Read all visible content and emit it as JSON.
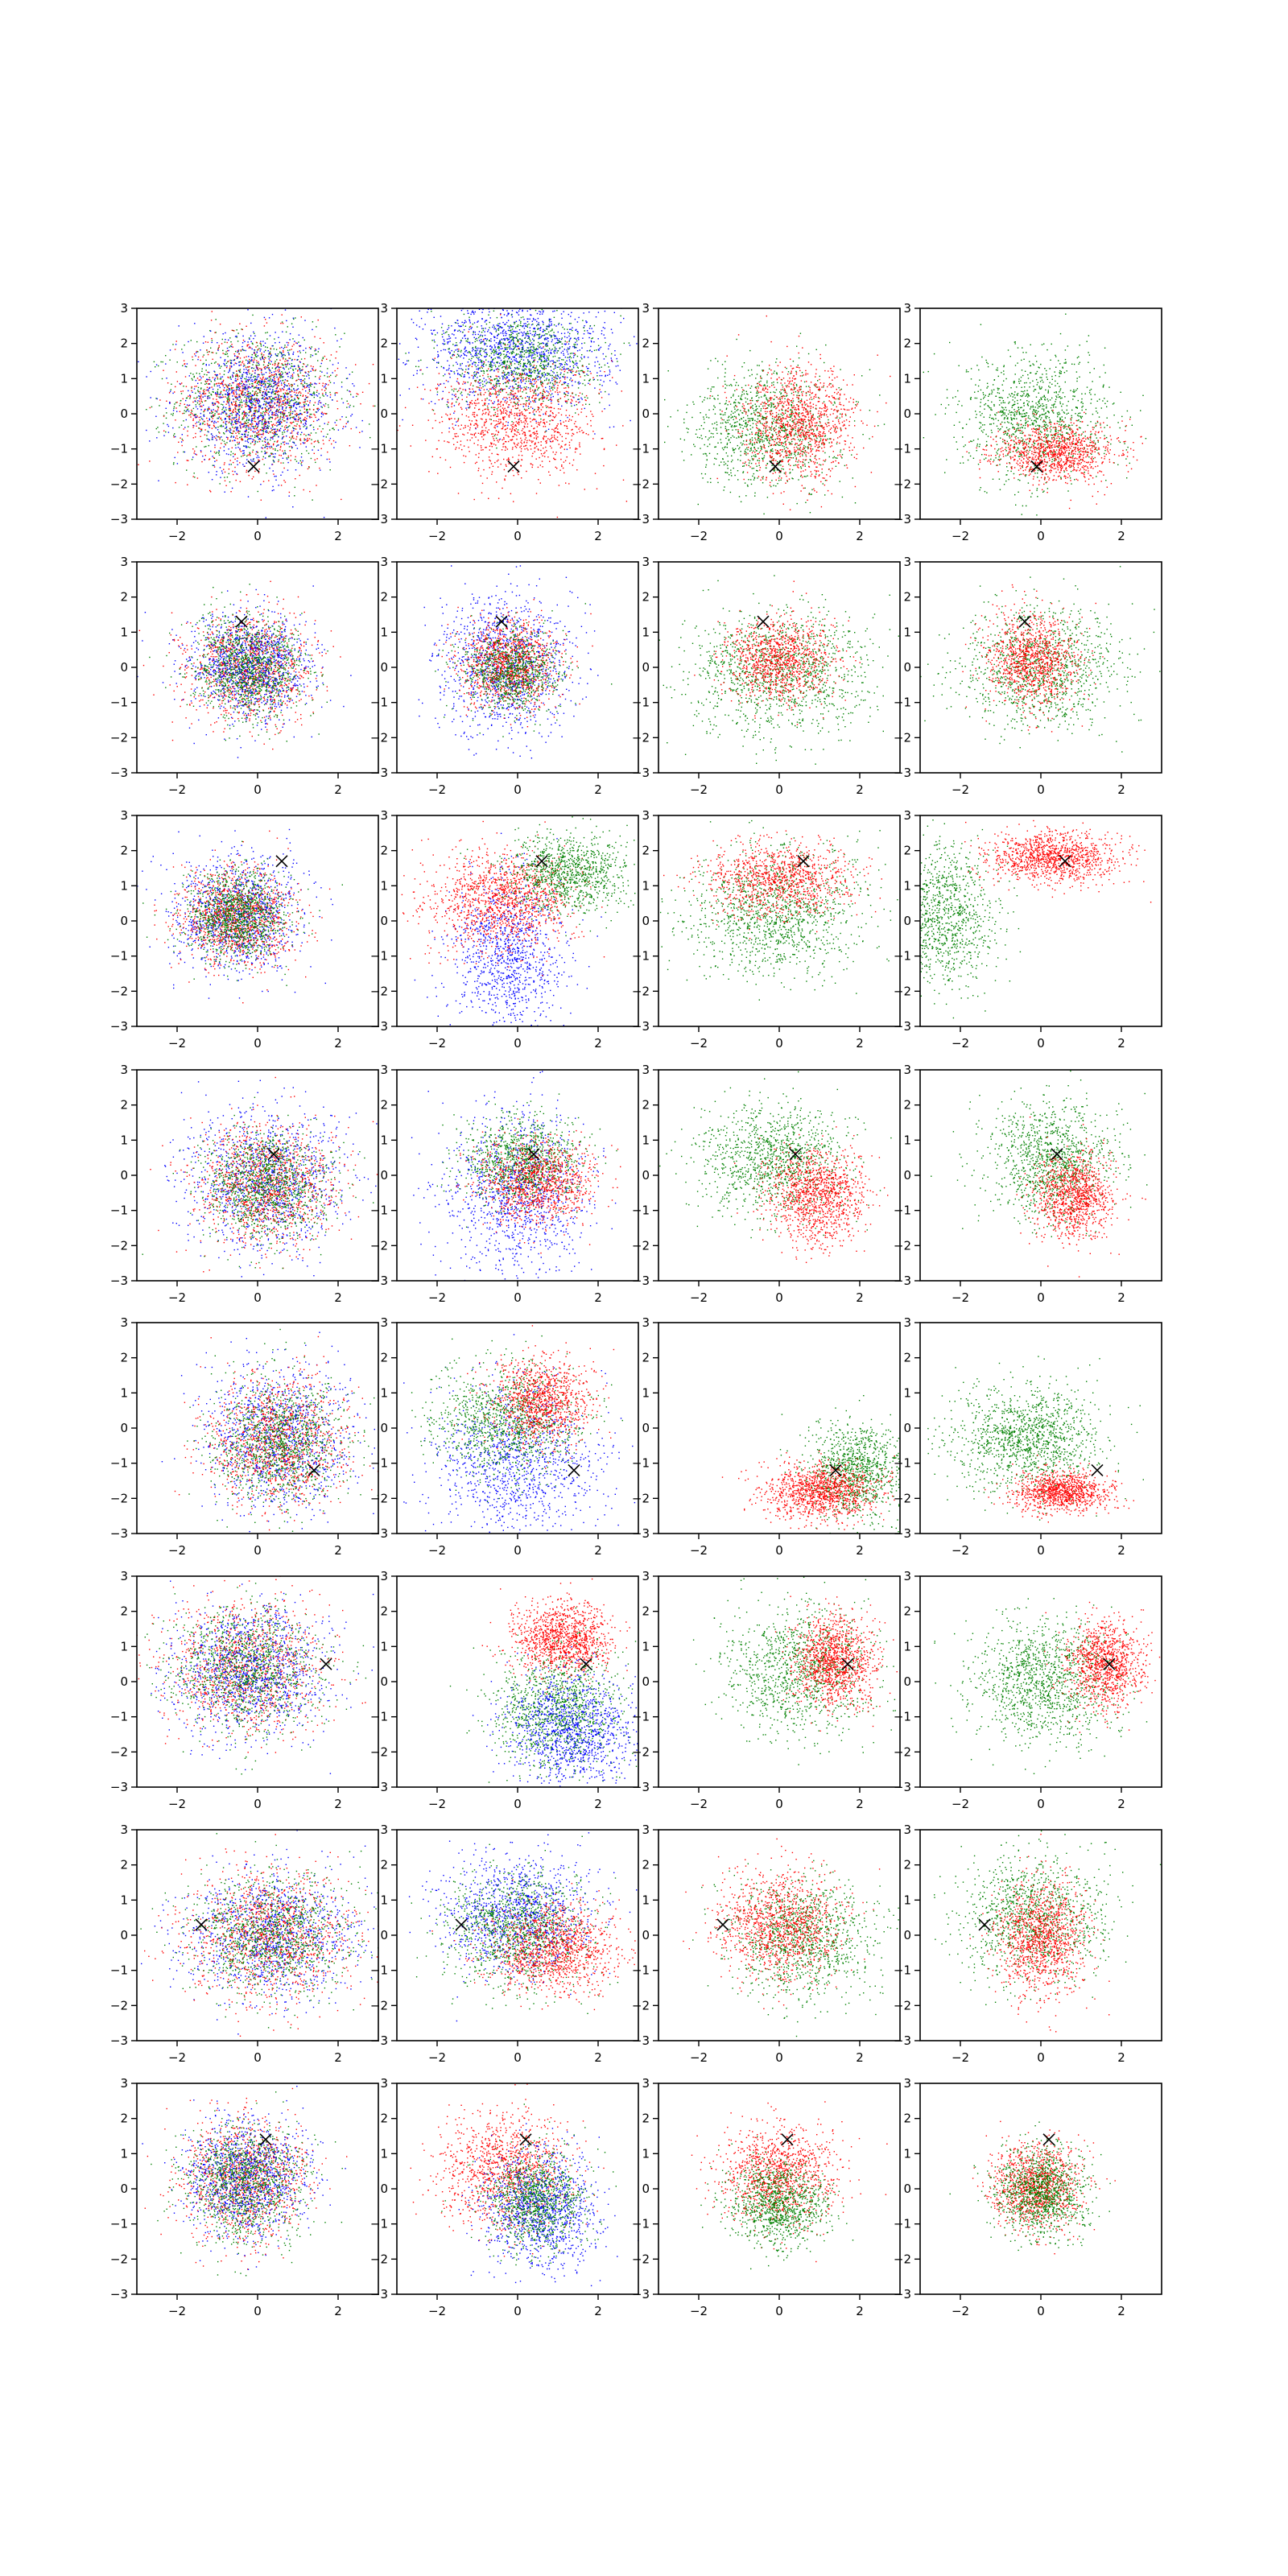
{
  "figure": {
    "rows": 8,
    "cols": 4,
    "colors": {
      "red": "#ff0000",
      "green": "#008000",
      "blue": "#0000ff",
      "marker": "#000000",
      "axes": "#000000"
    }
  },
  "chart_data": {
    "type": "scatter",
    "xlim": [
      -3,
      3
    ],
    "ylim": [
      -3,
      3
    ],
    "xticks": [
      -2,
      0,
      2
    ],
    "yticks": [
      -3,
      -2,
      -1,
      0,
      1,
      2,
      3
    ],
    "xtick_labels": [
      "−2",
      "0",
      "2"
    ],
    "ytick_labels": [
      "−3",
      "−2",
      "−1",
      "0",
      "1",
      "2",
      "3"
    ],
    "grid": false,
    "legend": "none",
    "marker_symbol": "x",
    "rows": [
      {
        "marker": [
          -0.1,
          -1.5
        ],
        "panels": [
          {
            "clusters": [
              {
                "color": "green",
                "cx": 0.0,
                "cy": 0.4,
                "sx": 1.0,
                "sy": 0.95,
                "weight": 1
              },
              {
                "color": "red",
                "cx": 0.0,
                "cy": 0.3,
                "sx": 1.0,
                "sy": 0.95,
                "weight": 1
              },
              {
                "color": "blue",
                "cx": 0.0,
                "cy": 0.3,
                "sx": 1.0,
                "sy": 0.95,
                "weight": 1
              }
            ]
          },
          {
            "clusters": [
              {
                "color": "blue",
                "cx": 0.0,
                "cy": 1.8,
                "sx": 1.2,
                "sy": 0.8,
                "weight": 1.2
              },
              {
                "color": "green",
                "cx": 0.1,
                "cy": 1.5,
                "sx": 0.9,
                "sy": 0.7,
                "weight": 0.8
              },
              {
                "color": "red",
                "cx": 0.0,
                "cy": -0.2,
                "sx": 1.0,
                "sy": 0.8,
                "weight": 1
              }
            ]
          },
          {
            "clusters": [
              {
                "color": "green",
                "cx": -0.3,
                "cy": -0.4,
                "sx": 0.9,
                "sy": 0.85,
                "weight": 1
              },
              {
                "color": "red",
                "cx": 0.5,
                "cy": -0.3,
                "sx": 0.7,
                "sy": 0.8,
                "weight": 1
              }
            ]
          },
          {
            "clusters": [
              {
                "color": "green",
                "cx": -0.1,
                "cy": -0.1,
                "sx": 0.9,
                "sy": 0.9,
                "weight": 1
              },
              {
                "color": "red",
                "cx": 0.4,
                "cy": -1.1,
                "sx": 0.75,
                "sy": 0.4,
                "weight": 0.9
              }
            ]
          }
        ]
      },
      {
        "marker": [
          -0.4,
          1.3
        ],
        "panels": [
          {
            "clusters": [
              {
                "color": "red",
                "cx": -0.2,
                "cy": 0.0,
                "sx": 0.75,
                "sy": 0.75,
                "weight": 1
              },
              {
                "color": "blue",
                "cx": -0.2,
                "cy": 0.0,
                "sx": 0.75,
                "sy": 0.75,
                "weight": 1
              },
              {
                "color": "green",
                "cx": -0.2,
                "cy": 0.0,
                "sx": 0.7,
                "sy": 0.7,
                "weight": 1
              }
            ]
          },
          {
            "clusters": [
              {
                "color": "blue",
                "cx": -0.3,
                "cy": 0.1,
                "sx": 0.8,
                "sy": 1.0,
                "weight": 1
              },
              {
                "color": "red",
                "cx": -0.2,
                "cy": 0.1,
                "sx": 0.6,
                "sy": 0.6,
                "weight": 1
              },
              {
                "color": "green",
                "cx": -0.2,
                "cy": -0.1,
                "sx": 0.6,
                "sy": 0.6,
                "weight": 0.8
              }
            ]
          },
          {
            "clusters": [
              {
                "color": "green",
                "cx": 0.0,
                "cy": -0.2,
                "sx": 1.1,
                "sy": 0.9,
                "weight": 1.1
              },
              {
                "color": "red",
                "cx": 0.0,
                "cy": 0.2,
                "sx": 0.65,
                "sy": 0.6,
                "weight": 0.9
              }
            ]
          },
          {
            "clusters": [
              {
                "color": "green",
                "cx": 0.0,
                "cy": 0.0,
                "sx": 1.0,
                "sy": 0.85,
                "weight": 1
              },
              {
                "color": "red",
                "cx": -0.2,
                "cy": 0.2,
                "sx": 0.55,
                "sy": 0.65,
                "weight": 0.9
              }
            ]
          }
        ]
      },
      {
        "marker": [
          0.6,
          1.7
        ],
        "panels": [
          {
            "clusters": [
              {
                "color": "blue",
                "cx": -0.5,
                "cy": 0.2,
                "sx": 0.8,
                "sy": 0.8,
                "weight": 1
              },
              {
                "color": "red",
                "cx": -0.5,
                "cy": 0.1,
                "sx": 0.7,
                "sy": 0.7,
                "weight": 1
              },
              {
                "color": "green",
                "cx": -0.5,
                "cy": 0.1,
                "sx": 0.6,
                "sy": 0.6,
                "weight": 1
              }
            ]
          },
          {
            "clusters": [
              {
                "color": "blue",
                "cx": -0.2,
                "cy": -1.0,
                "sx": 0.7,
                "sy": 1.1,
                "weight": 0.9
              },
              {
                "color": "red",
                "cx": -0.4,
                "cy": 0.6,
                "sx": 0.9,
                "sy": 0.7,
                "weight": 1.1
              },
              {
                "color": "green",
                "cx": 1.3,
                "cy": 1.4,
                "sx": 0.75,
                "sy": 0.55,
                "weight": 0.9
              }
            ]
          },
          {
            "clusters": [
              {
                "color": "green",
                "cx": -0.1,
                "cy": 0.2,
                "sx": 1.1,
                "sy": 0.9,
                "weight": 1.1
              },
              {
                "color": "red",
                "cx": 0.0,
                "cy": 1.2,
                "sx": 0.9,
                "sy": 0.5,
                "weight": 0.9
              }
            ]
          },
          {
            "clusters": [
              {
                "color": "green",
                "cx": -2.5,
                "cy": 0.2,
                "sx": 0.7,
                "sy": 1.0,
                "weight": 1
              },
              {
                "color": "red",
                "cx": 0.3,
                "cy": 1.8,
                "sx": 0.8,
                "sy": 0.35,
                "weight": 1
              }
            ]
          }
        ]
      },
      {
        "marker": [
          0.4,
          0.6
        ],
        "panels": [
          {
            "clusters": [
              {
                "color": "blue",
                "cx": 0.2,
                "cy": -0.2,
                "sx": 1.0,
                "sy": 0.95,
                "weight": 1
              },
              {
                "color": "red",
                "cx": 0.2,
                "cy": -0.3,
                "sx": 0.85,
                "sy": 0.85,
                "weight": 1
              },
              {
                "color": "green",
                "cx": 0.2,
                "cy": -0.3,
                "sx": 0.8,
                "sy": 0.8,
                "weight": 1
              }
            ]
          },
          {
            "clusters": [
              {
                "color": "blue",
                "cx": 0.0,
                "cy": -0.6,
                "sx": 0.9,
                "sy": 1.2,
                "weight": 1
              },
              {
                "color": "green",
                "cx": 0.1,
                "cy": 0.4,
                "sx": 0.7,
                "sy": 0.6,
                "weight": 0.9
              },
              {
                "color": "red",
                "cx": 0.5,
                "cy": -0.2,
                "sx": 0.7,
                "sy": 0.6,
                "weight": 0.9
              }
            ]
          },
          {
            "clusters": [
              {
                "color": "green",
                "cx": -0.1,
                "cy": 0.4,
                "sx": 0.9,
                "sy": 0.8,
                "weight": 1
              },
              {
                "color": "red",
                "cx": 0.9,
                "cy": -0.6,
                "sx": 0.6,
                "sy": 0.65,
                "weight": 1
              }
            ]
          },
          {
            "clusters": [
              {
                "color": "green",
                "cx": 0.3,
                "cy": 0.4,
                "sx": 0.8,
                "sy": 0.8,
                "weight": 1
              },
              {
                "color": "red",
                "cx": 0.8,
                "cy": -0.6,
                "sx": 0.5,
                "sy": 0.6,
                "weight": 0.9
              }
            ]
          }
        ]
      },
      {
        "marker": [
          1.4,
          -1.2
        ],
        "panels": [
          {
            "clusters": [
              {
                "color": "blue",
                "cx": 0.5,
                "cy": -0.3,
                "sx": 0.9,
                "sy": 1.0,
                "weight": 1
              },
              {
                "color": "red",
                "cx": 0.5,
                "cy": -0.4,
                "sx": 0.85,
                "sy": 0.9,
                "weight": 1
              },
              {
                "color": "green",
                "cx": 0.5,
                "cy": -0.4,
                "sx": 0.8,
                "sy": 0.9,
                "weight": 1
              }
            ]
          },
          {
            "clusters": [
              {
                "color": "blue",
                "cx": 0.0,
                "cy": -1.0,
                "sx": 1.0,
                "sy": 1.1,
                "weight": 1
              },
              {
                "color": "green",
                "cx": -0.3,
                "cy": 0.2,
                "sx": 0.9,
                "sy": 0.8,
                "weight": 1
              },
              {
                "color": "red",
                "cx": 0.6,
                "cy": 0.8,
                "sx": 0.6,
                "sy": 0.6,
                "weight": 0.9
              }
            ]
          },
          {
            "clusters": [
              {
                "color": "green",
                "cx": 1.9,
                "cy": -1.2,
                "sx": 0.6,
                "sy": 0.7,
                "weight": 0.9
              },
              {
                "color": "red",
                "cx": 1.0,
                "cy": -1.8,
                "sx": 0.7,
                "sy": 0.4,
                "weight": 1
              }
            ]
          },
          {
            "clusters": [
              {
                "color": "green",
                "cx": -0.3,
                "cy": -0.3,
                "sx": 0.9,
                "sy": 0.75,
                "weight": 1.1
              },
              {
                "color": "red",
                "cx": 0.5,
                "cy": -1.8,
                "sx": 0.6,
                "sy": 0.3,
                "weight": 0.9
              }
            ]
          }
        ]
      },
      {
        "marker": [
          1.7,
          0.5
        ],
        "panels": [
          {
            "clusters": [
              {
                "color": "red",
                "cx": -0.3,
                "cy": 0.4,
                "sx": 1.0,
                "sy": 0.95,
                "weight": 1
              },
              {
                "color": "blue",
                "cx": -0.2,
                "cy": 0.3,
                "sx": 0.95,
                "sy": 0.9,
                "weight": 1
              },
              {
                "color": "green",
                "cx": -0.3,
                "cy": 0.4,
                "sx": 0.9,
                "sy": 0.9,
                "weight": 1
              }
            ]
          },
          {
            "clusters": [
              {
                "color": "red",
                "cx": 1.1,
                "cy": 1.2,
                "sx": 0.6,
                "sy": 0.5,
                "weight": 1
              },
              {
                "color": "green",
                "cx": 1.0,
                "cy": -0.8,
                "sx": 0.8,
                "sy": 0.8,
                "weight": 1
              },
              {
                "color": "blue",
                "cx": 1.3,
                "cy": -1.4,
                "sx": 0.8,
                "sy": 0.8,
                "weight": 1
              }
            ]
          },
          {
            "clusters": [
              {
                "color": "green",
                "cx": 0.5,
                "cy": 0.3,
                "sx": 0.9,
                "sy": 0.9,
                "weight": 1
              },
              {
                "color": "red",
                "cx": 1.4,
                "cy": 0.6,
                "sx": 0.5,
                "sy": 0.65,
                "weight": 1
              }
            ]
          },
          {
            "clusters": [
              {
                "color": "green",
                "cx": 0.1,
                "cy": 0.0,
                "sx": 0.9,
                "sy": 0.85,
                "weight": 1.1
              },
              {
                "color": "red",
                "cx": 1.6,
                "cy": 0.5,
                "sx": 0.45,
                "sy": 0.6,
                "weight": 0.9
              }
            ]
          }
        ]
      },
      {
        "marker": [
          -1.4,
          0.3
        ],
        "panels": [
          {
            "clusters": [
              {
                "color": "blue",
                "cx": 0.3,
                "cy": 0.0,
                "sx": 1.1,
                "sy": 0.9,
                "weight": 1
              },
              {
                "color": "red",
                "cx": 0.3,
                "cy": 0.0,
                "sx": 1.0,
                "sy": 0.9,
                "weight": 1
              },
              {
                "color": "green",
                "cx": 0.3,
                "cy": 0.0,
                "sx": 1.0,
                "sy": 0.85,
                "weight": 1
              }
            ]
          },
          {
            "clusters": [
              {
                "color": "blue",
                "cx": 0.0,
                "cy": 0.6,
                "sx": 0.9,
                "sy": 0.85,
                "weight": 1
              },
              {
                "color": "green",
                "cx": 0.0,
                "cy": 0.2,
                "sx": 0.9,
                "sy": 0.8,
                "weight": 1
              },
              {
                "color": "red",
                "cx": 0.9,
                "cy": -0.4,
                "sx": 0.8,
                "sy": 0.6,
                "weight": 1
              }
            ]
          },
          {
            "clusters": [
              {
                "color": "green",
                "cx": 0.6,
                "cy": -0.1,
                "sx": 0.9,
                "sy": 0.9,
                "weight": 1
              },
              {
                "color": "red",
                "cx": 0.0,
                "cy": 0.3,
                "sx": 0.75,
                "sy": 0.75,
                "weight": 1
              }
            ]
          },
          {
            "clusters": [
              {
                "color": "green",
                "cx": -0.2,
                "cy": 0.5,
                "sx": 0.9,
                "sy": 0.9,
                "weight": 1
              },
              {
                "color": "red",
                "cx": 0.0,
                "cy": -0.1,
                "sx": 0.55,
                "sy": 0.8,
                "weight": 1
              }
            ]
          }
        ]
      },
      {
        "marker": [
          0.2,
          1.4
        ],
        "panels": [
          {
            "clusters": [
              {
                "color": "red",
                "cx": -0.3,
                "cy": 0.3,
                "sx": 0.8,
                "sy": 0.85,
                "weight": 1
              },
              {
                "color": "blue",
                "cx": -0.3,
                "cy": 0.3,
                "sx": 0.75,
                "sy": 0.8,
                "weight": 1
              },
              {
                "color": "green",
                "cx": -0.3,
                "cy": 0.2,
                "sx": 0.75,
                "sy": 0.8,
                "weight": 1
              }
            ]
          },
          {
            "clusters": [
              {
                "color": "red",
                "cx": -0.3,
                "cy": 0.5,
                "sx": 0.8,
                "sy": 0.8,
                "weight": 1
              },
              {
                "color": "blue",
                "cx": 0.6,
                "cy": -0.6,
                "sx": 0.7,
                "sy": 0.8,
                "weight": 1
              },
              {
                "color": "green",
                "cx": 0.5,
                "cy": -0.3,
                "sx": 0.6,
                "sy": 0.7,
                "weight": 0.9
              }
            ]
          },
          {
            "clusters": [
              {
                "color": "red",
                "cx": 0.0,
                "cy": 0.4,
                "sx": 0.7,
                "sy": 0.7,
                "weight": 1
              },
              {
                "color": "green",
                "cx": 0.0,
                "cy": -0.4,
                "sx": 0.6,
                "sy": 0.6,
                "weight": 0.9
              }
            ]
          },
          {
            "clusters": [
              {
                "color": "red",
                "cx": -0.1,
                "cy": 0.1,
                "sx": 0.55,
                "sy": 0.6,
                "weight": 1
              },
              {
                "color": "green",
                "cx": 0.0,
                "cy": -0.1,
                "sx": 0.55,
                "sy": 0.6,
                "weight": 1
              }
            ]
          }
        ]
      }
    ]
  }
}
